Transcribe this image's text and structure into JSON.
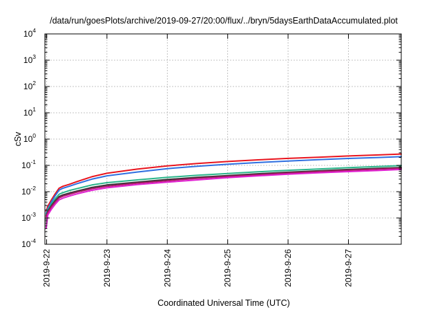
{
  "chart_data": {
    "type": "line",
    "title": "/data/run/goesPlots/archive/2019-09-27/20:00/flux/../bryn/5daysEarthDataAccumulated.plot",
    "xlabel": "Coordinated Universal Time (UTC)",
    "ylabel": "cSv",
    "y_scale": "log",
    "ylim": [
      0.0001,
      10000
    ],
    "xlim": [
      "2019-09-21T23:20",
      "2019-09-27T21:00"
    ],
    "grid": true,
    "x_ticks": [
      "2019-9-22",
      "2019-9-23",
      "2019-9-24",
      "2019-9-25",
      "2019-9-26",
      "2019-9-27"
    ],
    "y_ticks": [
      {
        "base": "10",
        "exp": "-4",
        "value": 0.0001
      },
      {
        "base": "10",
        "exp": "-3",
        "value": 0.001
      },
      {
        "base": "10",
        "exp": "-2",
        "value": 0.01
      },
      {
        "base": "10",
        "exp": "-1",
        "value": 0.1
      },
      {
        "base": "10",
        "exp": "0",
        "value": 1
      },
      {
        "base": "10",
        "exp": "1",
        "value": 10
      },
      {
        "base": "10",
        "exp": "2",
        "value": 100
      },
      {
        "base": "10",
        "exp": "3",
        "value": 1000
      },
      {
        "base": "10",
        "exp": "4",
        "value": 10000
      }
    ],
    "x": [
      "2019-09-21T23:50",
      "2019-09-22T00:30",
      "2019-09-22T02:00",
      "2019-09-22T03:30",
      "2019-09-22T05:00",
      "2019-09-22T06:30",
      "2019-09-22T09:00",
      "2019-09-22T12:00",
      "2019-09-22T18:00",
      "2019-09-23T00:00",
      "2019-09-23T12:00",
      "2019-09-24T00:00",
      "2019-09-24T12:00",
      "2019-09-25T00:00",
      "2019-09-25T12:00",
      "2019-09-26T00:00",
      "2019-09-26T12:00",
      "2019-09-27T00:00",
      "2019-09-27T12:00",
      "2019-09-27T21:00"
    ],
    "series": [
      {
        "color": "#e8141e",
        "values": [
          0.0018,
          0.0028,
          0.005,
          0.0085,
          0.0135,
          0.016,
          0.019,
          0.024,
          0.037,
          0.05,
          0.072,
          0.096,
          0.118,
          0.14,
          0.162,
          0.184,
          0.205,
          0.228,
          0.25,
          0.27
        ]
      },
      {
        "color": "#2f6fe0",
        "values": [
          0.0015,
          0.0023,
          0.0042,
          0.0072,
          0.0115,
          0.0135,
          0.016,
          0.02,
          0.03,
          0.04,
          0.056,
          0.075,
          0.093,
          0.11,
          0.128,
          0.146,
          0.165,
          0.183,
          0.2,
          0.214
        ]
      },
      {
        "color": "#2ab48a",
        "values": [
          0.0013,
          0.002,
          0.0035,
          0.0055,
          0.008,
          0.0092,
          0.011,
          0.013,
          0.018,
          0.022,
          0.028,
          0.035,
          0.042,
          0.049,
          0.057,
          0.065,
          0.073,
          0.082,
          0.091,
          0.098
        ]
      },
      {
        "color": "#333333",
        "values": [
          0.0012,
          0.0018,
          0.003,
          0.0046,
          0.0065,
          0.0075,
          0.0088,
          0.0105,
          0.0145,
          0.018,
          0.023,
          0.029,
          0.035,
          0.041,
          0.048,
          0.055,
          0.062,
          0.07,
          0.077,
          0.083
        ]
      },
      {
        "color": "#b0186a",
        "values": [
          0.0011,
          0.0016,
          0.0027,
          0.0041,
          0.0058,
          0.0067,
          0.0079,
          0.0095,
          0.013,
          0.016,
          0.021,
          0.026,
          0.032,
          0.038,
          0.044,
          0.051,
          0.058,
          0.065,
          0.072,
          0.078
        ]
      },
      {
        "color": "#e020d0",
        "values": [
          0.0004,
          0.0013,
          0.0022,
          0.0034,
          0.0049,
          0.0057,
          0.0068,
          0.0082,
          0.0113,
          0.014,
          0.0185,
          0.023,
          0.028,
          0.034,
          0.04,
          0.046,
          0.052,
          0.058,
          0.064,
          0.07
        ]
      }
    ]
  }
}
